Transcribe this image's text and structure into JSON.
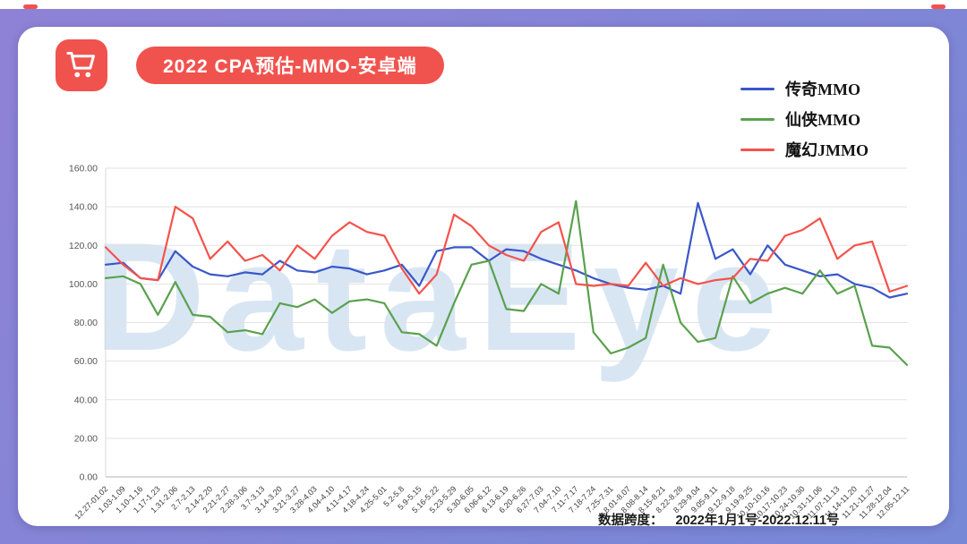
{
  "header": {
    "title": "2022 CPA预估-MMO-安卓端",
    "icon": "shopping-cart-icon"
  },
  "watermark": "DataEye",
  "footer": {
    "note_label": "数据跨度：",
    "note_value": "2022年1月1号-2022.12.11号"
  },
  "colors": {
    "accent": "#F0534E",
    "bg_from": "#8F82D6",
    "bg_to": "#7688D6",
    "watermark": "#BFD6EE",
    "series_blue": "#3A57C8",
    "series_green": "#5AA14E",
    "series_red": "#F4534C"
  },
  "chart_data": {
    "type": "line",
    "title": "2022 CPA预估-MMO-安卓端",
    "xlabel": "",
    "ylabel": "",
    "ylim": [
      0,
      160
    ],
    "ytick_step": 20,
    "grid": "horizontal",
    "legend_position": "top-right",
    "x_label_rotation": -45,
    "categories": [
      "12.27-01.02",
      "1.03-1.09",
      "1.10-1.16",
      "1.17-1.23",
      "1.31-2.06",
      "2.7-2.13",
      "2.14-2.20",
      "2.21-2.27",
      "2.28-3.06",
      "3.7-3.13",
      "3.14-3.20",
      "3.21-3.27",
      "3.28-4.03",
      "4.04-4.10",
      "4.11-4.17",
      "4.18-4.24",
      "4.25-5.01",
      "5.2-5.8",
      "5.9-5.15",
      "5.16-5.22",
      "5.23-5.29",
      "5.30-6.05",
      "6.06-6.12",
      "6.13-6.19",
      "6.20-6.26",
      "6.27-7.03",
      "7.04-7.10",
      "7.11-7.17",
      "7.18-7.24",
      "7.25-7.31",
      "8.01-8.07",
      "8.08-8.14",
      "8.15-8.21",
      "8.22-8.28",
      "8.29-9.04",
      "9.05-9.11",
      "9.12-9.18",
      "9.19-9.25",
      "10.10-10.16",
      "10.17-10.23",
      "10.24-10.30",
      "10.31-11.06",
      "11.07-11.13",
      "11.14-11.20",
      "11.21-11.27",
      "11.28-12.04",
      "12.05-12.11"
    ],
    "series": [
      {
        "name": "传奇MMO",
        "color": "#3A57C8",
        "values": [
          110,
          111,
          103,
          102,
          117,
          109,
          105,
          104,
          106,
          105,
          112,
          107,
          106,
          109,
          108,
          105,
          107,
          110,
          99,
          117,
          119,
          119,
          112,
          118,
          117,
          113,
          110,
          107,
          103,
          100,
          98,
          97,
          99,
          95,
          142,
          113,
          118,
          105,
          120,
          110,
          107,
          104,
          105,
          100,
          98,
          93,
          95
        ]
      },
      {
        "name": "仙侠MMO",
        "color": "#5AA14E",
        "values": [
          103,
          104,
          100,
          84,
          101,
          84,
          83,
          75,
          76,
          74,
          90,
          88,
          92,
          85,
          91,
          92,
          90,
          75,
          74,
          68,
          90,
          110,
          112,
          87,
          86,
          100,
          95,
          143,
          75,
          64,
          67,
          72,
          110,
          80,
          70,
          72,
          104,
          90,
          95,
          98,
          95,
          107,
          95,
          99,
          68,
          67,
          58
        ]
      },
      {
        "name": "魔幻JMMO",
        "color": "#F4534C",
        "values": [
          119,
          110,
          103,
          102,
          140,
          134,
          113,
          122,
          112,
          115,
          107,
          120,
          113,
          125,
          132,
          127,
          125,
          108,
          95,
          105,
          136,
          130,
          120,
          115,
          112,
          127,
          132,
          100,
          99,
          100,
          99,
          111,
          99,
          103,
          100,
          102,
          103,
          113,
          112,
          125,
          128,
          134,
          113,
          120,
          122,
          96,
          99
        ]
      }
    ]
  }
}
